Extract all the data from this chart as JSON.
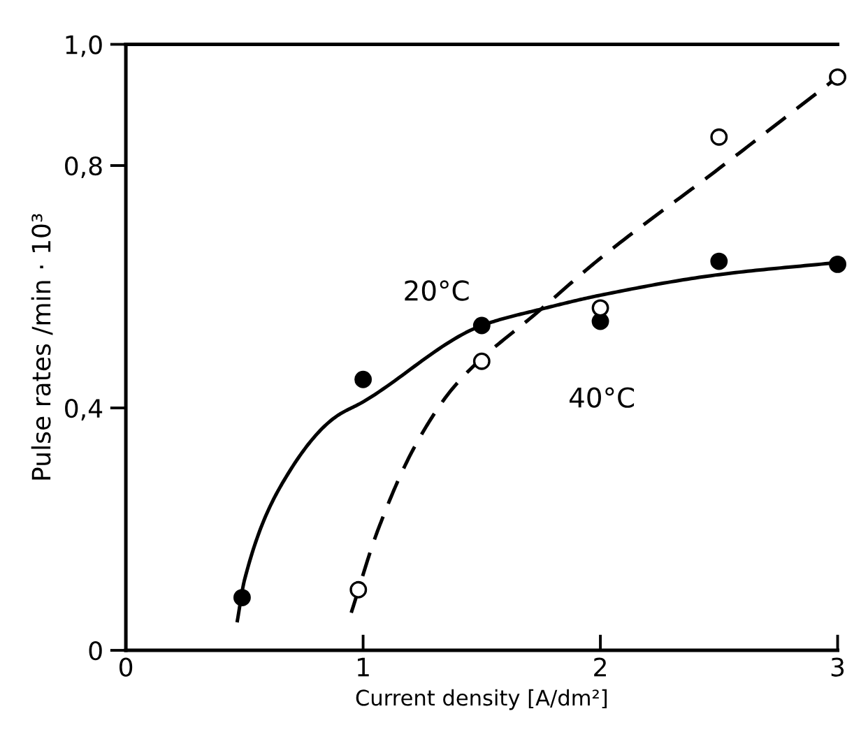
{
  "chart_data": {
    "type": "scatter",
    "xlabel": "Current density [A/dm²]",
    "ylabel": "Pulse rates /min · 10³",
    "xlim": [
      0,
      3
    ],
    "ylim": [
      0,
      1.0
    ],
    "xticks": [
      0,
      1,
      2,
      3
    ],
    "yticks": [
      0,
      {
        "value": 0.4,
        "label": "0,4"
      },
      {
        "value": 0.8,
        "label": "0,8"
      },
      {
        "value": 1.0,
        "label": "1,0"
      }
    ],
    "grid": false,
    "legend": false,
    "series": [
      {
        "marker": "circle",
        "color": "#000000",
        "x": [
          0.49,
          1.0,
          1.5,
          2.0,
          2.5,
          3.0
        ],
        "values": [
          0.087,
          0.447,
          0.536,
          0.543,
          0.642,
          0.637
        ]
      },
      {
        "marker": "circle",
        "color": "#ffffff",
        "x": [
          0.98,
          1.5,
          2.0,
          2.5,
          3.0
        ],
        "values": [
          0.1,
          0.477,
          0.565,
          0.847,
          0.946
        ]
      },
      {
        "type": "line",
        "name": "20°C",
        "line_style": "solid",
        "color": "#000000",
        "x": [
          0.47,
          0.5,
          0.66,
          0.88,
          1.0,
          1.5,
          1.75,
          2.0,
          2.5,
          3.0
        ],
        "values": [
          0.049,
          0.116,
          0.276,
          0.384,
          0.41,
          0.536,
          0.563,
          0.586,
          0.62,
          0.64
        ]
      },
      {
        "type": "line",
        "name": "40°C",
        "line_style": "dashed",
        "color": "#000000",
        "x": [
          0.95,
          1.06,
          1.22,
          1.39,
          1.75,
          2.0,
          2.5,
          3.0
        ],
        "values": [
          0.062,
          0.196,
          0.338,
          0.438,
          0.563,
          0.647,
          0.795,
          0.946
        ]
      }
    ]
  }
}
